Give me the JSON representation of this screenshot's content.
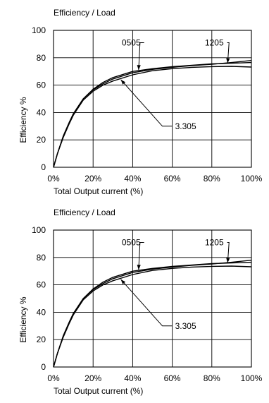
{
  "chart_data": [
    {
      "type": "line",
      "title": "Efficiency / Load",
      "xlabel": "Total Output current (%)",
      "ylabel": "Efficiency %",
      "xlim": [
        0,
        100
      ],
      "ylim": [
        0,
        100
      ],
      "x_ticks": [
        "0%",
        "20%",
        "40%",
        "60%",
        "80%",
        "100%"
      ],
      "y_ticks": [
        "0",
        "20",
        "40",
        "60",
        "80",
        "100"
      ],
      "grid": true,
      "series": [
        {
          "name": "0505",
          "x": [
            0,
            2,
            5,
            8,
            10,
            15,
            20,
            25,
            30,
            40,
            50,
            60,
            70,
            80,
            90,
            100
          ],
          "y": [
            0,
            10,
            23,
            33,
            39,
            50,
            57,
            62,
            65.5,
            70,
            72,
            73.5,
            74.5,
            75.5,
            76,
            76.5
          ],
          "label_at": [
            43,
            71
          ],
          "label_pos": [
            44,
            91
          ]
        },
        {
          "name": "1205",
          "x": [
            0,
            2,
            5,
            8,
            10,
            15,
            20,
            25,
            30,
            40,
            50,
            60,
            70,
            80,
            90,
            100
          ],
          "y": [
            0,
            10,
            23,
            33,
            39,
            50,
            56.5,
            61,
            64.5,
            69,
            71.5,
            73,
            74.3,
            75.2,
            76.5,
            78
          ],
          "label_at": [
            88,
            76
          ],
          "label_pos": [
            86,
            91
          ]
        },
        {
          "name": "3.305",
          "x": [
            0,
            2,
            5,
            8,
            10,
            15,
            20,
            25,
            30,
            40,
            50,
            60,
            70,
            80,
            90,
            100
          ],
          "y": [
            0,
            10,
            22,
            32,
            38,
            49,
            55.5,
            60,
            63,
            67.5,
            70.5,
            72,
            73,
            73.5,
            73.7,
            73.2
          ],
          "label_at": [
            34,
            64
          ],
          "label_pos": [
            60,
            30
          ]
        }
      ]
    },
    {
      "type": "line",
      "title": "Efficiency / Load",
      "xlabel": "Total Output current (%)",
      "ylabel": "Efficiency %",
      "xlim": [
        0,
        100
      ],
      "ylim": [
        0,
        100
      ],
      "x_ticks": [
        "0%",
        "20%",
        "40%",
        "60%",
        "80%",
        "100%"
      ],
      "y_ticks": [
        "0",
        "20",
        "40",
        "60",
        "80",
        "100"
      ],
      "grid": true,
      "series": [
        {
          "name": "0505",
          "x": [
            0,
            2,
            5,
            8,
            10,
            15,
            20,
            25,
            30,
            40,
            50,
            60,
            70,
            80,
            90,
            100
          ],
          "y": [
            0,
            10,
            23,
            33,
            39,
            50,
            57,
            62,
            65.5,
            70,
            72,
            73.5,
            74.5,
            75.5,
            76,
            76.5
          ],
          "label_at": [
            43,
            71
          ],
          "label_pos": [
            44,
            91
          ]
        },
        {
          "name": "1205",
          "x": [
            0,
            2,
            5,
            8,
            10,
            15,
            20,
            25,
            30,
            40,
            50,
            60,
            70,
            80,
            90,
            100
          ],
          "y": [
            0,
            10,
            23,
            33,
            39,
            50,
            56.5,
            61,
            64.5,
            69,
            71.5,
            73,
            74.3,
            75.2,
            76.5,
            78
          ],
          "label_at": [
            88,
            76
          ],
          "label_pos": [
            86,
            91
          ]
        },
        {
          "name": "3.305",
          "x": [
            0,
            2,
            5,
            8,
            10,
            15,
            20,
            25,
            30,
            40,
            50,
            60,
            70,
            80,
            90,
            100
          ],
          "y": [
            0,
            10,
            22,
            32,
            38,
            49,
            55.5,
            60,
            63,
            67.5,
            70.5,
            72,
            73,
            73.5,
            73.7,
            73.2
          ],
          "label_at": [
            34,
            64
          ],
          "label_pos": [
            60,
            30
          ]
        }
      ]
    }
  ]
}
